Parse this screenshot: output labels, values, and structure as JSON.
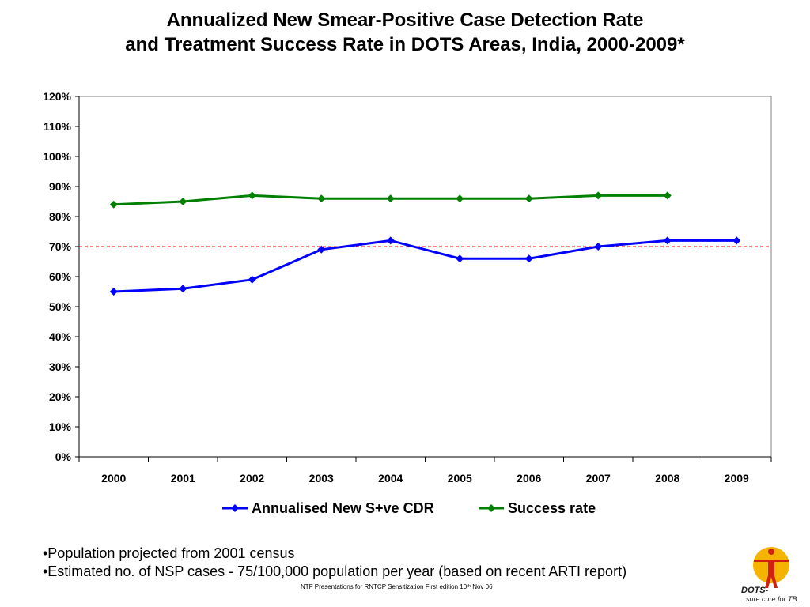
{
  "title_line1": "Annualized New Smear-Positive Case Detection Rate",
  "title_line2": "and Treatment Success Rate in DOTS Areas, India, 2000-2009*",
  "notes": [
    "•Population projected from 2001 census",
    "•Estimated no. of NSP cases - 75/100,000 population per year (based on recent ARTI report)"
  ],
  "footer": "NTF Presentations for RNTCP Sensitization First edition 10ᵗʰ Nov 06",
  "logo": {
    "text_main": "DOTS-",
    "text_sub": "sure cure for TB."
  },
  "chart_data": {
    "type": "line",
    "categories": [
      "2000",
      "2001",
      "2002",
      "2003",
      "2004",
      "2005",
      "2006",
      "2007",
      "2008",
      "2009"
    ],
    "series": [
      {
        "name": "Annualised New S+ve CDR",
        "color": "#0000ff",
        "values": [
          55,
          56,
          59,
          69,
          72,
          66,
          66,
          70,
          72,
          72
        ]
      },
      {
        "name": "Success rate",
        "color": "#008000",
        "values": [
          84,
          85,
          87,
          86,
          86,
          86,
          86,
          87,
          87,
          null
        ]
      }
    ],
    "y_ticks": [
      "0%",
      "10%",
      "20%",
      "30%",
      "40%",
      "50%",
      "60%",
      "70%",
      "80%",
      "90%",
      "100%",
      "110%",
      "120%"
    ],
    "ylim": [
      0,
      120
    ],
    "reference_line": {
      "value": 70,
      "color": "#ff0000",
      "style": "dashed"
    },
    "grid": false,
    "legend_position": "bottom"
  }
}
